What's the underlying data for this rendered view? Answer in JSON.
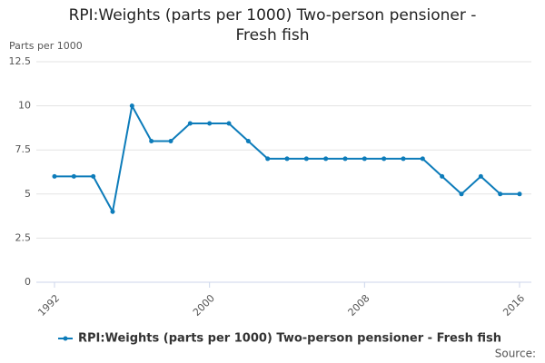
{
  "chart_data": {
    "type": "line",
    "title": "RPI:Weights (parts per 1000) Two-person pensioner - Fresh fish",
    "y_label": "Parts per 1000",
    "source": "Source:",
    "x": [
      1992,
      1993,
      1994,
      1995,
      1996,
      1997,
      1998,
      1999,
      2000,
      2001,
      2002,
      2003,
      2004,
      2005,
      2006,
      2007,
      2008,
      2009,
      2010,
      2011,
      2012,
      2013,
      2014,
      2015,
      2016
    ],
    "series": [
      {
        "name": "RPI:Weights (parts per 1000) Two-person pensioner - Fresh fish",
        "color": "#0d7cba",
        "values": [
          6,
          6,
          6,
          4,
          10,
          8,
          8,
          9,
          9,
          9,
          8,
          7,
          7,
          7,
          7,
          7,
          7,
          7,
          7,
          7,
          6,
          5,
          6,
          5,
          5
        ]
      }
    ],
    "xlim": [
      1992,
      2016
    ],
    "xticks": [
      1992,
      2000,
      2008,
      2016
    ],
    "ylim": [
      0,
      12.5
    ],
    "yticks": [
      0,
      2.5,
      5,
      7.5,
      10,
      12.5
    ],
    "grid": true
  }
}
